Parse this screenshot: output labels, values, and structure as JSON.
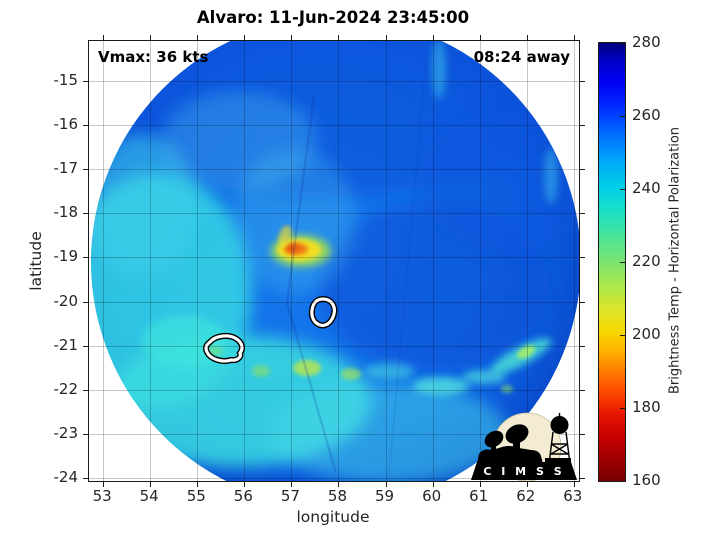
{
  "title": "Alvaro: 11-Jun-2024 23:45:00",
  "annotations": {
    "vmax": "Vmax: 36 kts",
    "time_away": "08:24 away"
  },
  "axes": {
    "xlabel": "longitude",
    "ylabel": "latitude",
    "xticks": [
      53,
      54,
      55,
      56,
      57,
      58,
      59,
      60,
      61,
      62,
      63
    ],
    "yticks": [
      -15,
      -16,
      -17,
      -18,
      -19,
      -20,
      -21,
      -22,
      -23,
      -24
    ],
    "xlim": [
      52.7,
      63.11
    ],
    "ylim": [
      -24.07,
      -14.09
    ]
  },
  "colorbar": {
    "label": "Brightness Temp - Horizontal Polarization",
    "ticks": [
      160,
      180,
      200,
      220,
      240,
      260,
      280
    ],
    "min": 160,
    "max": 280,
    "colormap_top_to_bottom": [
      "#00007a",
      "#0030ff",
      "#00d0e8",
      "#7ce470",
      "#f8d800",
      "#e61400",
      "#7a0000"
    ]
  },
  "logo": {
    "text": "C I M S S"
  },
  "chart_data": {
    "type": "heatmap",
    "title": "Alvaro: 11-Jun-2024 23:45:00",
    "storm_name": "Alvaro",
    "datetime": "11-Jun-2024 23:45:00",
    "vmax_kts": 36,
    "overpass_offset": "08:24 away",
    "xlabel": "longitude",
    "ylabel": "latitude",
    "xlim": [
      52.7,
      63.1
    ],
    "ylim": [
      -24.1,
      -14.1
    ],
    "grid": true,
    "colorbar_label": "Brightness Temp - Horizontal Polarization",
    "colorbar_range_K": [
      160,
      280
    ],
    "swath": {
      "shape": "circle",
      "center_lon": 57.95,
      "center_lat": -19.1,
      "radius_deg": 5.2
    },
    "background_value_K": 255,
    "features": [
      {
        "name": "warm-convective-spot",
        "lon": 57.2,
        "lat": -18.85,
        "value_K": 205,
        "description": "orange/yellow low brightness-temperature spot with yellow tail"
      },
      {
        "name": "white-contour-1",
        "lon": 57.7,
        "lat": -20.25,
        "description": "small white black-edged closed contour (storm center estimate)"
      },
      {
        "name": "white-contour-2",
        "lon": 55.55,
        "lat": -21.05,
        "description": "small white black-edged closed contour (storm center estimate)"
      },
      {
        "name": "cool-cyan-region-west",
        "lon": 54.8,
        "lat": -20.5,
        "value_K": 240,
        "description": "broad cyan region on western/southwestern half of swath"
      },
      {
        "name": "yellow-green-patches-south",
        "lon": 57.3,
        "lat": -21.4,
        "value_K": 222,
        "description": "small yellow-green patches south of center"
      },
      {
        "name": "cyan-streaks-southeast",
        "lon": 60.3,
        "lat": -21.7,
        "value_K": 235,
        "description": "banded cyan streaks in southeast quadrant"
      },
      {
        "name": "green-cored-streak-east",
        "lon": 61.9,
        "lat": -21.15,
        "value_K": 225,
        "description": "diagonal cyan streak with green core near eastern edge"
      },
      {
        "name": "dark-blue-rim",
        "lon": 57.95,
        "lat": -19.1,
        "value_K": 265,
        "description": "darker blue values around swath rim and northeastern half"
      },
      {
        "name": "swath-seam",
        "lon": 57.1,
        "lat": -19.5,
        "description": "faint diagonal scan seam crossing swath from north to south"
      }
    ]
  }
}
